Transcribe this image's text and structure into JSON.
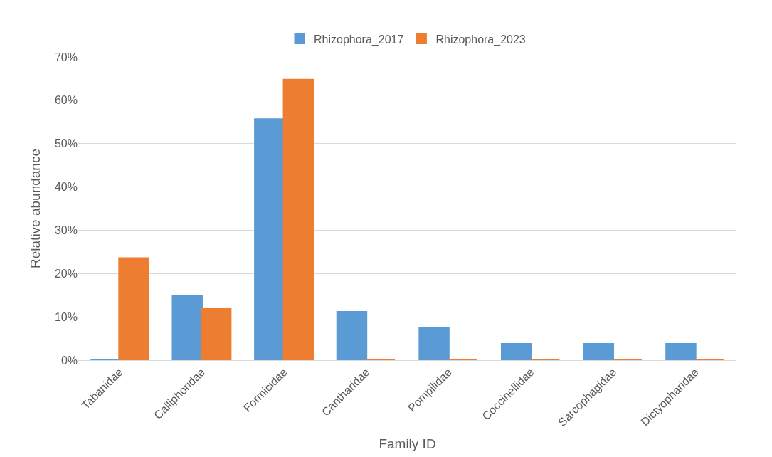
{
  "chart_data": {
    "type": "bar",
    "xlabel": "Family ID",
    "ylabel": "Relative abundance",
    "categories": [
      "Tabanidae",
      "Calliphoridae",
      "Formicidae",
      "Cantharidae",
      "Pompilidae",
      "Coccinellidae",
      "Sarcophagidae",
      "Dictyopharidae"
    ],
    "series": [
      {
        "name": "Rhizophora_2017",
        "color": "#5b9bd5",
        "values": [
          0,
          14.8,
          55.6,
          11.1,
          7.4,
          3.7,
          3.7,
          3.7
        ]
      },
      {
        "name": "Rhizophora_2023",
        "color": "#ed7d31",
        "values": [
          23.5,
          11.8,
          64.7,
          0,
          0,
          0,
          0,
          0
        ]
      }
    ],
    "ylim": [
      0,
      70
    ],
    "yticks": [
      {
        "value": 0,
        "label": "0%"
      },
      {
        "value": 10,
        "label": "10%"
      },
      {
        "value": 20,
        "label": "20%"
      },
      {
        "value": 30,
        "label": "30%"
      },
      {
        "value": 40,
        "label": "40%"
      },
      {
        "value": 50,
        "label": "50%"
      },
      {
        "value": 60,
        "label": "60%"
      },
      {
        "value": 70,
        "label": "70%"
      }
    ],
    "grid": "y",
    "legend": "top"
  }
}
